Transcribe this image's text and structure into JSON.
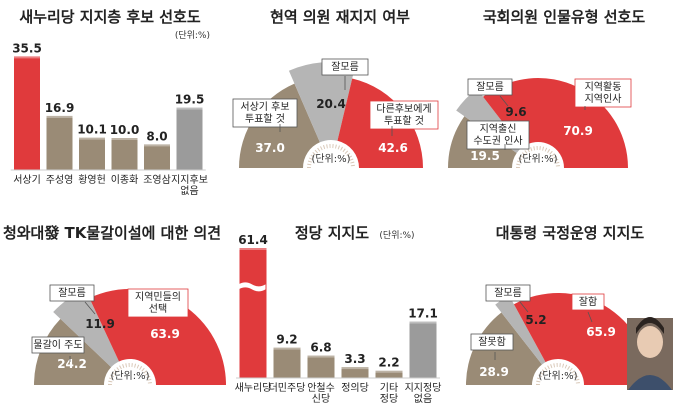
{
  "charts": [
    {
      "id": "support",
      "title": "새누리당 지지층 후보 선호도",
      "unit": "(단위:%)",
      "type": "bar",
      "categories": [
        "서상기",
        "주성영",
        "황영헌",
        "이종화",
        "조영삼",
        "지지후보\n없음"
      ],
      "values": [
        35.5,
        16.9,
        10.1,
        10.0,
        8.0,
        19.5
      ],
      "colors": [
        "#e03a3c",
        "#9a8b76",
        "#9a8b76",
        "#9a8b76",
        "#9a8b76",
        "#9b9b9b"
      ]
    },
    {
      "id": "incumbent",
      "title": "현역 의원 재지지 여부",
      "unit": "(단위:%)",
      "type": "gauge",
      "segments": [
        {
          "label": "서상기 후보\n투표할 것",
          "value": 37.0,
          "color": "#9a8b76"
        },
        {
          "label": "잘모름",
          "value": 20.4,
          "color": "#b5b5b5"
        },
        {
          "label": "다른후보에게\n투표할 것",
          "value": 42.6,
          "color": "#e03a3c"
        }
      ]
    },
    {
      "id": "mpType",
      "title": "국회의원 인물유형 선호도",
      "unit": "(단위:%)",
      "type": "gauge",
      "segments": [
        {
          "label": "지역출신\n수도권 인사",
          "value": 19.5,
          "color": "#9a8b76"
        },
        {
          "label": "잘모름",
          "value": 9.6,
          "color": "#b5b5b5"
        },
        {
          "label": "지역활동\n지역인사",
          "value": 70.9,
          "color": "#e03a3c"
        }
      ]
    },
    {
      "id": "relocation",
      "title": "청와대發 TK물갈이설에 대한 의견",
      "unit": "(단위:%)",
      "type": "gauge",
      "segments": [
        {
          "label": "물갈이 주도",
          "value": 24.2,
          "color": "#9a8b76"
        },
        {
          "label": "잘모름",
          "value": 11.9,
          "color": "#b5b5b5"
        },
        {
          "label": "지역민들의\n선택",
          "value": 63.9,
          "color": "#e03a3c"
        }
      ]
    },
    {
      "id": "party",
      "title": "정당 지지도",
      "unit": "(단위:%)",
      "type": "bar",
      "categories": [
        "새누리당",
        "더민주당",
        "안철수\n신당",
        "정의당",
        "기타\n정당",
        "지지정당\n없음"
      ],
      "values": [
        61.4,
        9.2,
        6.8,
        3.3,
        2.2,
        17.1
      ],
      "colors": [
        "#e03a3c",
        "#9a8b76",
        "#9a8b76",
        "#9a8b76",
        "#9a8b76",
        "#9b9b9b"
      ]
    },
    {
      "id": "approval",
      "title": "대통령 국정운영 지지도",
      "unit": "(단위:%)",
      "type": "gauge",
      "segments": [
        {
          "label": "잘못함",
          "value": 28.9,
          "color": "#9a8b76"
        },
        {
          "label": "잘모름",
          "value": 5.2,
          "color": "#b5b5b5"
        },
        {
          "label": "잘함",
          "value": 65.9,
          "color": "#e03a3c"
        }
      ]
    }
  ]
}
